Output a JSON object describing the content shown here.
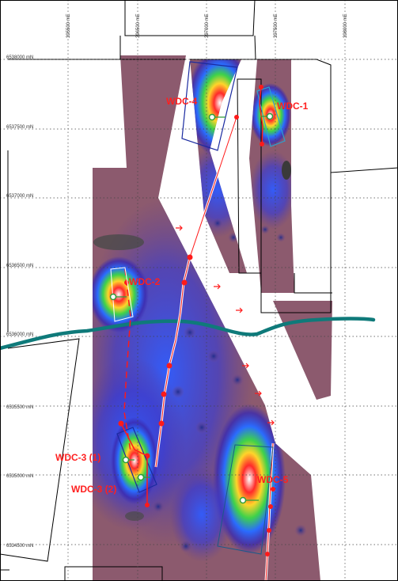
{
  "map": {
    "easting_labels": [
      "395500 mE",
      "396500 mE",
      "397000 mE",
      "397500 mE",
      "398000 mE"
    ],
    "northing_labels": [
      "6538000 mN",
      "6537500 mN",
      "6537000 mN",
      "6536500 mN",
      "6536000 mN",
      "6535500 mN",
      "6535000 mN",
      "6534500 mN"
    ],
    "drillholes": [
      {
        "id": "wdc4",
        "label": "WDC-4"
      },
      {
        "id": "wdc1",
        "label": "WDC-1"
      },
      {
        "id": "wdc2",
        "label": "WDC-2"
      },
      {
        "id": "wdc3a",
        "label": "WDC-3 (1)"
      },
      {
        "id": "wdc3b",
        "label": "WDC-3 (2)"
      },
      {
        "id": "wdc5",
        "label": "WDC-5"
      }
    ],
    "colors": {
      "survey_fill": "#8c5a6e",
      "trace": "#ff1a1a",
      "river": "#0f7a7a",
      "collar": "#2e9e3a",
      "label": "#ff2020"
    }
  }
}
